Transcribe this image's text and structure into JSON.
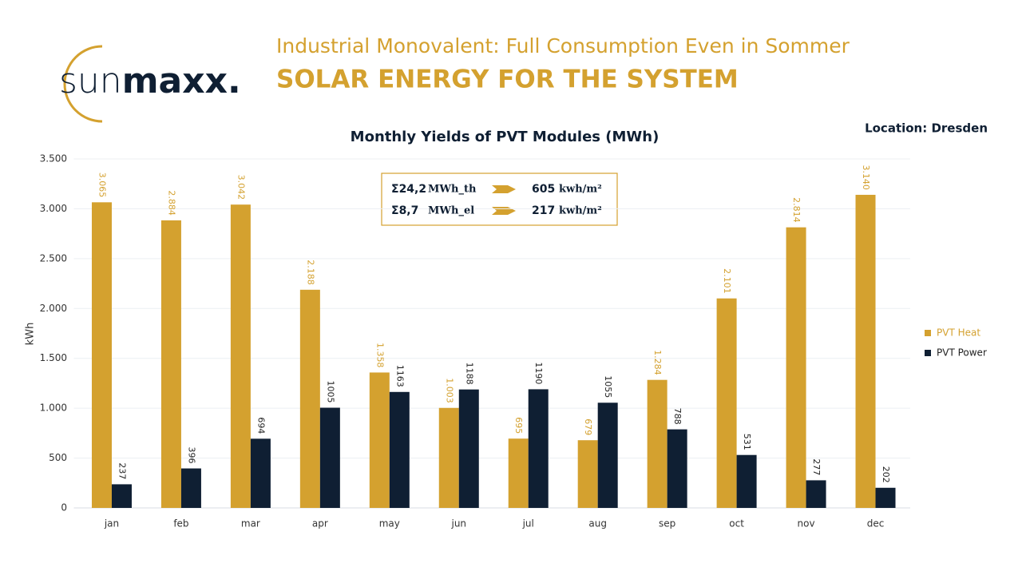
{
  "logo": {
    "light": "sun",
    "bold": "maxx."
  },
  "header": {
    "subtitle": "Industrial Monovalent: Full Consumption Even in Sommer",
    "title": "SOLAR ENERGY FOR THE SYSTEM",
    "location": "Location: Dresden"
  },
  "chart_data": {
    "type": "bar",
    "title": "Monthly Yields of PVT Modules (MWh)",
    "y_label": "kWh",
    "categories": [
      "jan",
      "feb",
      "mar",
      "apr",
      "may",
      "jun",
      "jul",
      "aug",
      "sep",
      "oct",
      "nov",
      "dec"
    ],
    "series": [
      {
        "name": "PVT Heat",
        "color": "#d4a12f",
        "values": [
          3065,
          2884,
          3042,
          2188,
          1358,
          1003,
          695,
          679,
          1284,
          2101,
          2814,
          3140
        ],
        "value_labels": [
          "3.065",
          "2.884",
          "3.042",
          "2.188",
          "1.358",
          "1.003",
          "695",
          "679",
          "1.284",
          "2.101",
          "2.814",
          "3.140"
        ]
      },
      {
        "name": "PVT Power",
        "color": "#0f1f33",
        "values": [
          237,
          396,
          694,
          1005,
          1163,
          1188,
          1190,
          1055,
          788,
          531,
          277,
          202
        ]
      }
    ],
    "ylim": [
      0,
      3500
    ],
    "yticks": [
      0,
      500,
      {
        "value": 1000,
        "label": "1.000"
      },
      {
        "value": 1500,
        "label": "1.500"
      },
      {
        "value": 2000,
        "label": "2.000"
      },
      {
        "value": 2500,
        "label": "2.500"
      },
      {
        "value": 3000,
        "label": "3.000"
      },
      {
        "value": 3500,
        "label": "3.500"
      }
    ],
    "grid": true,
    "legend": "right",
    "summary": [
      {
        "sum": "Σ24,2",
        "unit": "MWh_th",
        "value": "605",
        "value_unit": "kwh/m²"
      },
      {
        "sum": "Σ8,7",
        "unit": "MWh_el",
        "value": "217",
        "value_unit": "kwh/m²"
      }
    ]
  }
}
